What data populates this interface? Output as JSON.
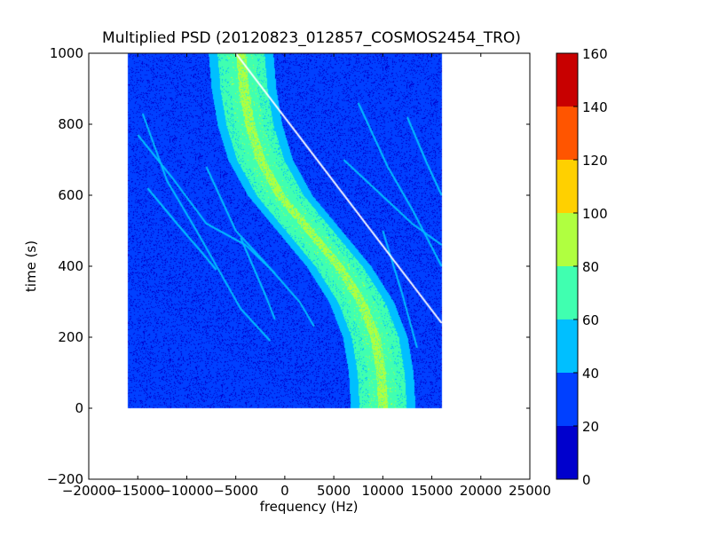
{
  "chart_data": {
    "type": "heatmap",
    "title": "Multiplied PSD (20120823_012857_COSMOS2454_TRO)",
    "xlabel": "frequency (Hz)",
    "ylabel": "time (s)",
    "xlim": [
      -20000,
      25000
    ],
    "ylim": [
      -200,
      1000
    ],
    "x_ticks": [
      -20000,
      -15000,
      -10000,
      -5000,
      0,
      5000,
      10000,
      15000,
      20000,
      25000
    ],
    "x_tick_labels": [
      "−20000",
      "−15000",
      "−10000",
      "−5000",
      "0",
      "5000",
      "10000",
      "15000",
      "20000",
      "25000"
    ],
    "y_ticks": [
      -200,
      0,
      200,
      400,
      600,
      800,
      1000
    ],
    "y_tick_labels": [
      "−200",
      "0",
      "200",
      "400",
      "600",
      "800",
      "1000"
    ],
    "data_extent": {
      "x": [
        -16000,
        16000
      ],
      "y": [
        0,
        1000
      ]
    },
    "background_level": 28,
    "main_trace": {
      "description_points": [
        {
          "t": 0,
          "f": 10000
        },
        {
          "t": 100,
          "f": 9800
        },
        {
          "t": 200,
          "f": 9200
        },
        {
          "t": 300,
          "f": 7800
        },
        {
          "t": 400,
          "f": 5500
        },
        {
          "t": 500,
          "f": 2500
        },
        {
          "t": 600,
          "f": -500
        },
        {
          "t": 700,
          "f": -2500
        },
        {
          "t": 800,
          "f": -3600
        },
        {
          "t": 900,
          "f": -4200
        },
        {
          "t": 1000,
          "f": -4500
        }
      ],
      "band_levels": [
        {
          "halfwidth": 3300,
          "level": 52
        },
        {
          "halfwidth": 2400,
          "level": 63
        },
        {
          "halfwidth": 1400,
          "level": 72
        },
        {
          "halfwidth": 500,
          "level": 85
        }
      ]
    },
    "white_line": {
      "start": {
        "f": -5000,
        "t": 1000
      },
      "end": {
        "f": 16000,
        "t": 240
      }
    },
    "faint_traces": [
      {
        "points": [
          [
            -14500,
            830
          ],
          [
            -12000,
            640
          ],
          [
            -9000,
            500
          ],
          [
            -4500,
            280
          ],
          [
            -1500,
            190
          ]
        ]
      },
      {
        "points": [
          [
            -15000,
            770
          ],
          [
            -11500,
            650
          ],
          [
            -8000,
            520
          ],
          [
            -4000,
            460
          ],
          [
            -1000,
            380
          ]
        ]
      },
      {
        "points": [
          [
            -14000,
            620
          ],
          [
            -11000,
            520
          ],
          [
            -8500,
            440
          ],
          [
            -7000,
            390
          ]
        ]
      },
      {
        "points": [
          [
            -8000,
            680
          ],
          [
            -5000,
            500
          ],
          [
            -2000,
            410
          ],
          [
            1500,
            300
          ],
          [
            3000,
            230
          ]
        ]
      },
      {
        "points": [
          [
            -4500,
            480
          ],
          [
            -2000,
            320
          ],
          [
            -1000,
            250
          ]
        ]
      },
      {
        "points": [
          [
            6000,
            700
          ],
          [
            9500,
            610
          ],
          [
            13000,
            520
          ],
          [
            16000,
            460
          ]
        ]
      },
      {
        "points": [
          [
            7500,
            860
          ],
          [
            10500,
            680
          ],
          [
            13000,
            560
          ],
          [
            16000,
            400
          ]
        ]
      },
      {
        "points": [
          [
            12500,
            820
          ],
          [
            14500,
            690
          ],
          [
            16000,
            600
          ]
        ]
      },
      {
        "points": [
          [
            10000,
            500
          ],
          [
            12000,
            320
          ],
          [
            13500,
            170
          ]
        ]
      }
    ],
    "colorbar": {
      "min": 0,
      "max": 160,
      "ticks": [
        0,
        20,
        40,
        60,
        80,
        100,
        120,
        140,
        160
      ],
      "levels": [
        {
          "from": 0,
          "to": 20,
          "color": "#0000cd"
        },
        {
          "from": 20,
          "to": 40,
          "color": "#0040ff"
        },
        {
          "from": 40,
          "to": 60,
          "color": "#00bfff"
        },
        {
          "from": 60,
          "to": 80,
          "color": "#40ffb0"
        },
        {
          "from": 80,
          "to": 100,
          "color": "#b0ff40"
        },
        {
          "from": 100,
          "to": 120,
          "color": "#ffd000"
        },
        {
          "from": 120,
          "to": 140,
          "color": "#ff5500"
        },
        {
          "from": 140,
          "to": 160,
          "color": "#c80000"
        }
      ]
    },
    "grid": false,
    "legend": "none"
  }
}
